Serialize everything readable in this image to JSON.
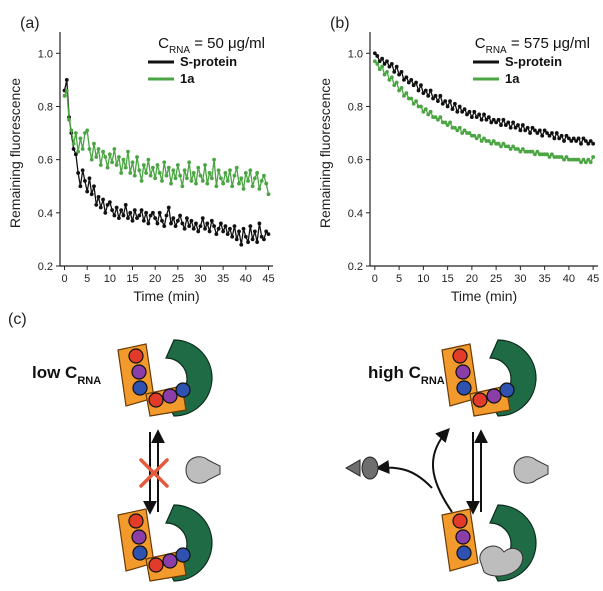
{
  "figure": {
    "panel_c_label": "(c)",
    "low_label_main": "low C",
    "low_label_sub": "RNA",
    "high_label_main": "high C",
    "high_label_sub": "RNA"
  },
  "colors": {
    "s_protein": "#111111",
    "compound_1a": "#4aa542",
    "orange": "#f39a2c",
    "green_domain": "#1f6b45",
    "red_bead": "#e23b2a",
    "purple_bead": "#8b3ea8",
    "blue_bead": "#2f52b0",
    "peptide_light": "#bdbdbd",
    "peptide_dark": "#6e6e6e",
    "block_x": "#e55a3c"
  },
  "chart_data": [
    {
      "type": "line",
      "panel": "(a)",
      "annotation_main": "C",
      "annotation_sub": "RNA",
      "annotation_rest": " = 50 μg/ml",
      "xlabel": "Time (min)",
      "ylabel": "Remaining fluorescence",
      "xlim": [
        -1,
        46
      ],
      "ylim": [
        0.2,
        1.05
      ],
      "xticks": [
        0,
        5,
        10,
        15,
        20,
        25,
        30,
        35,
        40,
        45
      ],
      "yticks": [
        0.2,
        0.4,
        0.6,
        0.8,
        1.0
      ],
      "ytick_labels": [
        "0.2",
        "0.4",
        "0.6",
        "0.8",
        "1.0"
      ],
      "legend_position": "top-right",
      "series": [
        {
          "name": "S-protein",
          "x": [
            0,
            0.5,
            1,
            1.5,
            2,
            2.5,
            3,
            3.5,
            4,
            4.5,
            5,
            5.5,
            6,
            6.5,
            7,
            7.5,
            8,
            8.5,
            9,
            9.5,
            10,
            10.5,
            11,
            11.5,
            12,
            12.5,
            13,
            13.5,
            14,
            14.5,
            15,
            15.5,
            16,
            16.5,
            17,
            17.5,
            18,
            18.5,
            19,
            19.5,
            20,
            20.5,
            21,
            21.5,
            22,
            22.5,
            23,
            23.5,
            24,
            24.5,
            25,
            25.5,
            26,
            26.5,
            27,
            27.5,
            28,
            28.5,
            29,
            29.5,
            30,
            30.5,
            31,
            31.5,
            32,
            32.5,
            33,
            33.5,
            34,
            34.5,
            35,
            35.5,
            36,
            36.5,
            37,
            37.5,
            38,
            38.5,
            39,
            39.5,
            40,
            40.5,
            41,
            41.5,
            42,
            42.5,
            43,
            43.5,
            44,
            44.5,
            45
          ],
          "values": [
            0.86,
            0.9,
            0.76,
            0.7,
            0.64,
            0.62,
            0.55,
            0.5,
            0.56,
            0.52,
            0.48,
            0.53,
            0.47,
            0.5,
            0.43,
            0.46,
            0.42,
            0.45,
            0.4,
            0.43,
            0.44,
            0.41,
            0.39,
            0.42,
            0.38,
            0.41,
            0.39,
            0.43,
            0.38,
            0.4,
            0.37,
            0.41,
            0.38,
            0.39,
            0.41,
            0.37,
            0.4,
            0.36,
            0.39,
            0.4,
            0.38,
            0.36,
            0.4,
            0.37,
            0.35,
            0.39,
            0.42,
            0.36,
            0.38,
            0.35,
            0.37,
            0.39,
            0.36,
            0.34,
            0.38,
            0.35,
            0.37,
            0.34,
            0.36,
            0.33,
            0.35,
            0.38,
            0.34,
            0.36,
            0.33,
            0.37,
            0.35,
            0.32,
            0.34,
            0.36,
            0.33,
            0.35,
            0.32,
            0.34,
            0.31,
            0.35,
            0.3,
            0.33,
            0.28,
            0.34,
            0.31,
            0.29,
            0.35,
            0.3,
            0.33,
            0.29,
            0.36,
            0.31,
            0.3,
            0.33,
            0.32
          ]
        },
        {
          "name": "1a",
          "x": [
            0,
            0.5,
            1,
            1.5,
            2,
            2.5,
            3,
            3.5,
            4,
            4.5,
            5,
            5.5,
            6,
            6.5,
            7,
            7.5,
            8,
            8.5,
            9,
            9.5,
            10,
            10.5,
            11,
            11.5,
            12,
            12.5,
            13,
            13.5,
            14,
            14.5,
            15,
            15.5,
            16,
            16.5,
            17,
            17.5,
            18,
            18.5,
            19,
            19.5,
            20,
            20.5,
            21,
            21.5,
            22,
            22.5,
            23,
            23.5,
            24,
            24.5,
            25,
            25.5,
            26,
            26.5,
            27,
            27.5,
            28,
            28.5,
            29,
            29.5,
            30,
            30.5,
            31,
            31.5,
            32,
            32.5,
            33,
            33.5,
            34,
            34.5,
            35,
            35.5,
            36,
            36.5,
            37,
            37.5,
            38,
            38.5,
            39,
            39.5,
            40,
            40.5,
            41,
            41.5,
            42,
            42.5,
            43,
            43.5,
            44,
            44.5,
            45
          ],
          "values": [
            0.84,
            0.86,
            0.75,
            0.71,
            0.66,
            0.7,
            0.63,
            0.68,
            0.64,
            0.7,
            0.71,
            0.64,
            0.6,
            0.66,
            0.61,
            0.64,
            0.58,
            0.63,
            0.61,
            0.57,
            0.62,
            0.59,
            0.64,
            0.58,
            0.61,
            0.55,
            0.6,
            0.57,
            0.63,
            0.55,
            0.59,
            0.54,
            0.61,
            0.56,
            0.52,
            0.58,
            0.55,
            0.6,
            0.54,
            0.57,
            0.53,
            0.58,
            0.55,
            0.52,
            0.59,
            0.54,
            0.57,
            0.51,
            0.56,
            0.53,
            0.58,
            0.54,
            0.5,
            0.56,
            0.53,
            0.59,
            0.52,
            0.55,
            0.51,
            0.57,
            0.54,
            0.52,
            0.58,
            0.51,
            0.55,
            0.53,
            0.6,
            0.5,
            0.56,
            0.53,
            0.51,
            0.55,
            0.52,
            0.56,
            0.5,
            0.54,
            0.57,
            0.51,
            0.53,
            0.49,
            0.55,
            0.52,
            0.56,
            0.5,
            0.53,
            0.55,
            0.49,
            0.52,
            0.54,
            0.51,
            0.47
          ]
        }
      ]
    },
    {
      "type": "line",
      "panel": "(b)",
      "annotation_main": "C",
      "annotation_sub": "RNA",
      "annotation_rest": " = 575 μg/ml",
      "xlabel": "Time (min)",
      "ylabel": "Remaining fluorescence",
      "xlim": [
        -1,
        46
      ],
      "ylim": [
        0.2,
        1.05
      ],
      "xticks": [
        0,
        5,
        10,
        15,
        20,
        25,
        30,
        35,
        40,
        45
      ],
      "yticks": [
        0.2,
        0.4,
        0.6,
        0.8,
        1.0
      ],
      "ytick_labels": [
        "0.2",
        "0.4",
        "0.6",
        "0.8",
        "1.0"
      ],
      "legend_position": "top-right",
      "series": [
        {
          "name": "S-protein",
          "x": [
            0,
            0.5,
            1,
            1.5,
            2,
            2.5,
            3,
            3.5,
            4,
            4.5,
            5,
            5.5,
            6,
            6.5,
            7,
            7.5,
            8,
            8.5,
            9,
            9.5,
            10,
            10.5,
            11,
            11.5,
            12,
            12.5,
            13,
            13.5,
            14,
            14.5,
            15,
            15.5,
            16,
            16.5,
            17,
            17.5,
            18,
            18.5,
            19,
            19.5,
            20,
            20.5,
            21,
            21.5,
            22,
            22.5,
            23,
            23.5,
            24,
            24.5,
            25,
            25.5,
            26,
            26.5,
            27,
            27.5,
            28,
            28.5,
            29,
            29.5,
            30,
            30.5,
            31,
            31.5,
            32,
            32.5,
            33,
            33.5,
            34,
            34.5,
            35,
            35.5,
            36,
            36.5,
            37,
            37.5,
            38,
            38.5,
            39,
            39.5,
            40,
            40.5,
            41,
            41.5,
            42,
            42.5,
            43,
            43.5,
            44,
            44.5,
            45
          ],
          "values": [
            1.0,
            0.99,
            0.97,
            0.98,
            0.96,
            0.97,
            0.95,
            0.96,
            0.93,
            0.95,
            0.92,
            0.93,
            0.9,
            0.91,
            0.89,
            0.9,
            0.88,
            0.89,
            0.86,
            0.88,
            0.85,
            0.86,
            0.84,
            0.86,
            0.83,
            0.84,
            0.82,
            0.84,
            0.81,
            0.82,
            0.8,
            0.82,
            0.79,
            0.81,
            0.78,
            0.8,
            0.78,
            0.79,
            0.77,
            0.78,
            0.76,
            0.78,
            0.76,
            0.77,
            0.75,
            0.77,
            0.75,
            0.76,
            0.74,
            0.75,
            0.74,
            0.75,
            0.73,
            0.75,
            0.73,
            0.74,
            0.72,
            0.74,
            0.72,
            0.73,
            0.71,
            0.73,
            0.71,
            0.72,
            0.7,
            0.72,
            0.71,
            0.7,
            0.71,
            0.69,
            0.71,
            0.7,
            0.69,
            0.7,
            0.68,
            0.7,
            0.68,
            0.69,
            0.67,
            0.69,
            0.68,
            0.67,
            0.68,
            0.67,
            0.68,
            0.66,
            0.68,
            0.67,
            0.66,
            0.67,
            0.66
          ]
        },
        {
          "name": "1a",
          "x": [
            0,
            0.5,
            1,
            1.5,
            2,
            2.5,
            3,
            3.5,
            4,
            4.5,
            5,
            5.5,
            6,
            6.5,
            7,
            7.5,
            8,
            8.5,
            9,
            9.5,
            10,
            10.5,
            11,
            11.5,
            12,
            12.5,
            13,
            13.5,
            14,
            14.5,
            15,
            15.5,
            16,
            16.5,
            17,
            17.5,
            18,
            18.5,
            19,
            19.5,
            20,
            20.5,
            21,
            21.5,
            22,
            22.5,
            23,
            23.5,
            24,
            24.5,
            25,
            25.5,
            26,
            26.5,
            27,
            27.5,
            28,
            28.5,
            29,
            29.5,
            30,
            30.5,
            31,
            31.5,
            32,
            32.5,
            33,
            33.5,
            34,
            34.5,
            35,
            35.5,
            36,
            36.5,
            37,
            37.5,
            38,
            38.5,
            39,
            39.5,
            40,
            40.5,
            41,
            41.5,
            42,
            42.5,
            43,
            43.5,
            44,
            44.5,
            45
          ],
          "values": [
            0.97,
            0.96,
            0.94,
            0.95,
            0.92,
            0.93,
            0.9,
            0.91,
            0.88,
            0.89,
            0.86,
            0.87,
            0.84,
            0.85,
            0.83,
            0.83,
            0.81,
            0.82,
            0.8,
            0.8,
            0.78,
            0.79,
            0.77,
            0.78,
            0.76,
            0.76,
            0.75,
            0.76,
            0.74,
            0.74,
            0.73,
            0.74,
            0.72,
            0.72,
            0.71,
            0.72,
            0.7,
            0.71,
            0.7,
            0.7,
            0.69,
            0.69,
            0.68,
            0.69,
            0.67,
            0.68,
            0.67,
            0.67,
            0.66,
            0.67,
            0.66,
            0.66,
            0.65,
            0.66,
            0.65,
            0.65,
            0.64,
            0.65,
            0.64,
            0.64,
            0.63,
            0.64,
            0.63,
            0.63,
            0.63,
            0.63,
            0.62,
            0.63,
            0.62,
            0.62,
            0.62,
            0.62,
            0.61,
            0.62,
            0.61,
            0.61,
            0.61,
            0.61,
            0.6,
            0.61,
            0.6,
            0.6,
            0.6,
            0.6,
            0.6,
            0.59,
            0.6,
            0.59,
            0.6,
            0.59,
            0.61
          ]
        }
      ]
    }
  ]
}
